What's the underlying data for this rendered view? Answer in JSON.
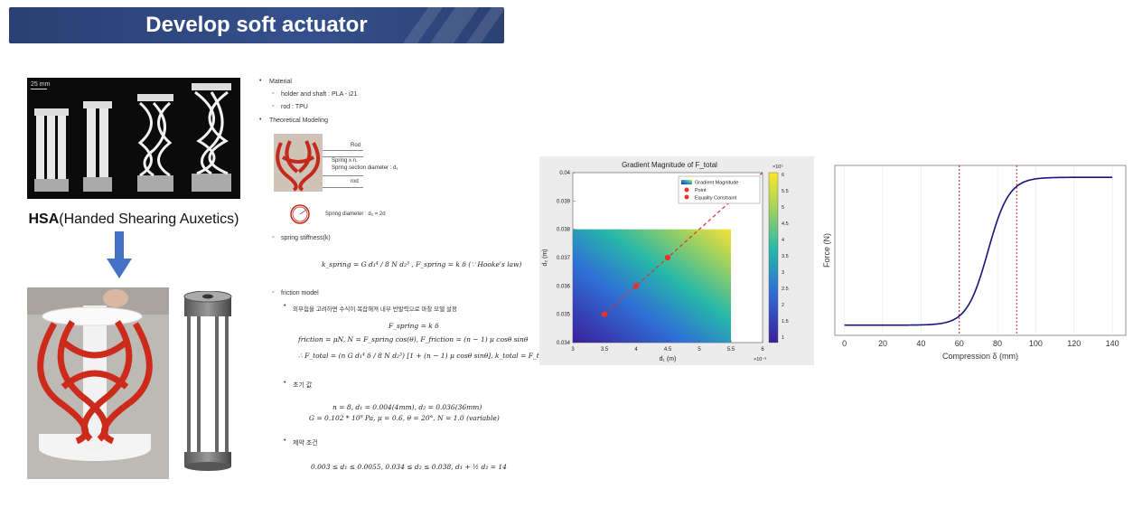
{
  "banner": {
    "title": "Develop soft actuator"
  },
  "left": {
    "scale_bar": "25 mm",
    "hsa_caption_bold": "HSA",
    "hsa_caption_rest": "(Handed Shearing Auxetics)"
  },
  "notes": {
    "material": "Material",
    "holder": "holder and shaft : PLA - i21",
    "rod": "rod : TPU",
    "theoretical": "Theoretical Modeling",
    "fig_rod_top": "Rod",
    "fig_spring1": "Spring x n.",
    "fig_spring2": "Spring section diameter : d₁",
    "fig_rod_bottom": "rod",
    "fig_spring_diam": "Spring diameter : d₂ = 2d",
    "stiffness": "spring stiffness(k)",
    "eq_stiffness": "k_spring = G d₁⁴ / 8 N d₂³ ,   F_spring = k δ   (∵ Hooke's law)",
    "friction_model": "friction model",
    "korean_note": "외부힘을 고려하면 수식이 복잡해져 내부 반발력으로 마찰 모델 설정",
    "eq_f1": "F_spring = k δ",
    "eq_f2": "friction = μN,  N = F_spring cos(θ),  F_friction = (n − 1) μ cosθ sinθ",
    "eq_f3": "∴  F_total = (n G d₁⁴ δ / 8 N d₂³) [1 + (n − 1) μ cosθ sinθ],  k_total = F_total / δ",
    "initial": "초기 값",
    "eq_init1": "n = 8,  d₁ = 0.004(4mm),  d₂ = 0.036(36mm)",
    "eq_init2": "G = 0.102 * 10⁹ Pa,  μ = 0.6,  θ = 20°,  N = 1.0 (variable)",
    "constraint": "제약 조건",
    "eq_constraint": "0.003 ≤ d₁ ≤ 0.0055,  0.034 ≤ d₂ ≤ 0.038,   d₁ + ½ d₂ = 14"
  },
  "chart_data": [
    {
      "type": "heatmap",
      "title": "Gradient Magnitude of F_total",
      "xlabel": "d₁ (m)",
      "ylabel": "d₂ (m)",
      "x_multiplier": "×10⁻³",
      "xlim": [
        3,
        6
      ],
      "ylim": [
        0.034,
        0.04
      ],
      "x_ticks": [
        "3",
        "3.5",
        "4",
        "4.5",
        "5",
        "5.5",
        "6"
      ],
      "y_ticks": [
        "0.034",
        "0.035",
        "0.036",
        "0.037",
        "0.038",
        "0.039",
        "0.04"
      ],
      "heatmap_region": {
        "x": [
          3,
          5.5
        ],
        "y": [
          0.034,
          0.038
        ]
      },
      "colorbar": {
        "ticks": [
          "1",
          "1.5",
          "2",
          "2.5",
          "3",
          "3.5",
          "4",
          "4.5",
          "5",
          "5.5",
          "6"
        ],
        "multiplier": "×10⁵"
      },
      "legend": [
        "Gradient Magnitude",
        "Point",
        "Equality Constraint"
      ],
      "points": [
        {
          "x": 3.5,
          "y": 0.035
        },
        {
          "x": 4.0,
          "y": 0.036
        },
        {
          "x": 4.5,
          "y": 0.037
        }
      ],
      "constraint_line": [
        {
          "x": 3.5,
          "y": 0.035
        },
        {
          "x": 6.0,
          "y": 0.04
        }
      ]
    },
    {
      "type": "line",
      "title": "",
      "xlabel": "Compression δ (mm)",
      "ylabel": "Force (N)",
      "xlim": [
        -5,
        147
      ],
      "x_ticks": [
        "0",
        "20",
        "40",
        "60",
        "80",
        "100",
        "120",
        "140"
      ],
      "curve": {
        "x0": 0,
        "x1": 140,
        "low": 0.06,
        "high": 0.93,
        "center": 75,
        "scale": 5.5
      },
      "vlines": [
        60,
        90
      ],
      "colors": {
        "curve": "#15157a",
        "vline": "#cc2222"
      }
    }
  ]
}
